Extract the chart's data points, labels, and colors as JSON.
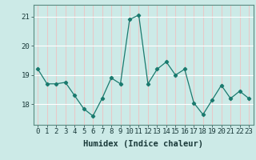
{
  "x": [
    0,
    1,
    2,
    3,
    4,
    5,
    6,
    7,
    8,
    9,
    10,
    11,
    12,
    13,
    14,
    15,
    16,
    17,
    18,
    19,
    20,
    21,
    22,
    23
  ],
  "y": [
    19.2,
    18.7,
    18.7,
    18.75,
    18.3,
    17.85,
    17.6,
    18.2,
    18.9,
    18.7,
    20.9,
    21.05,
    18.7,
    19.2,
    19.45,
    19.0,
    19.2,
    18.05,
    17.65,
    18.15,
    18.65,
    18.2,
    18.45,
    18.2
  ],
  "line_color": "#1a7a6e",
  "marker": "D",
  "marker_size": 2.2,
  "bg_color": "#cceae7",
  "grid_h_color": "#ffffff",
  "grid_v_color": "#e8c8c8",
  "xlabel": "Humidex (Indice chaleur)",
  "xlabel_fontsize": 7.5,
  "tick_fontsize": 6.5,
  "ylim": [
    17.3,
    21.4
  ],
  "yticks": [
    18,
    19,
    20,
    21
  ],
  "xticks": [
    0,
    1,
    2,
    3,
    4,
    5,
    6,
    7,
    8,
    9,
    10,
    11,
    12,
    13,
    14,
    15,
    16,
    17,
    18,
    19,
    20,
    21,
    22,
    23
  ]
}
